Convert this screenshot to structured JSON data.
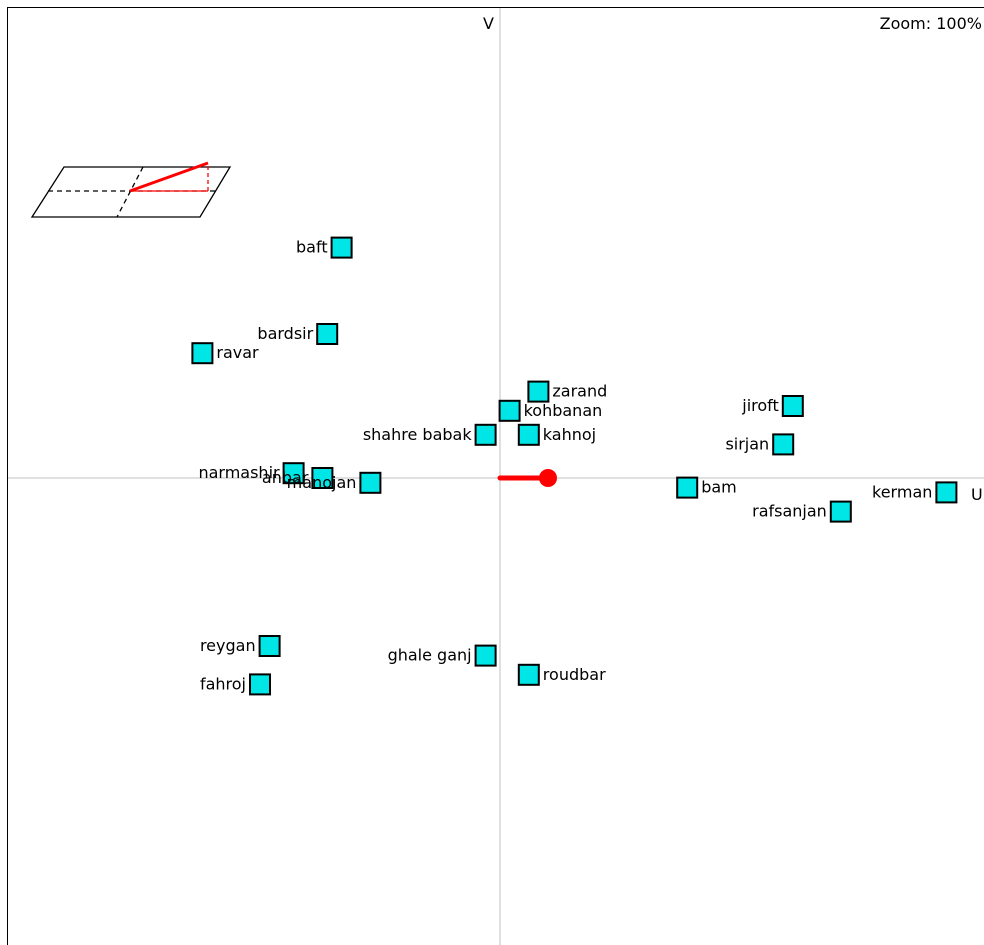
{
  "viewport": {
    "vertical_axis_label": "V",
    "horizontal_axis_label": "U",
    "zoom_label": "Zoom:",
    "zoom_value": "100%"
  },
  "colors": {
    "point_fill": "#00e6e6",
    "point_stroke": "#000000",
    "axis": "#c0c0c0",
    "vector": "#ff0000",
    "frame": "#000000"
  },
  "points": [
    {
      "name": "baft",
      "u": -0.33,
      "v": 0.48,
      "label_side": "left"
    },
    {
      "name": "bardsir",
      "u": -0.36,
      "v": 0.3,
      "label_side": "left"
    },
    {
      "name": "ravar",
      "u": -0.62,
      "v": 0.26,
      "label_side": "right"
    },
    {
      "name": "zarand",
      "u": 0.08,
      "v": 0.18,
      "label_side": "right"
    },
    {
      "name": "kohbanan",
      "u": 0.02,
      "v": 0.14,
      "label_side": "right"
    },
    {
      "name": "shahre babak",
      "u": -0.03,
      "v": 0.09,
      "label_side": "left"
    },
    {
      "name": "kahnoj",
      "u": 0.06,
      "v": 0.09,
      "label_side": "right"
    },
    {
      "name": "jiroft",
      "u": 0.61,
      "v": 0.15,
      "label_side": "left"
    },
    {
      "name": "sirjan",
      "u": 0.59,
      "v": 0.07,
      "label_side": "left"
    },
    {
      "name": "narmashir",
      "u": -0.43,
      "v": 0.01,
      "label_side": "left"
    },
    {
      "name": "anbar",
      "u": -0.37,
      "v": 0.0,
      "label_side": "left"
    },
    {
      "name": "manojan",
      "u": -0.27,
      "v": -0.01,
      "label_side": "left"
    },
    {
      "name": "bam",
      "u": 0.39,
      "v": -0.02,
      "label_side": "right"
    },
    {
      "name": "kerman",
      "u": 0.93,
      "v": -0.03,
      "label_side": "left"
    },
    {
      "name": "rafsanjan",
      "u": 0.71,
      "v": -0.07,
      "label_side": "left"
    },
    {
      "name": "reygan",
      "u": -0.48,
      "v": -0.35,
      "label_side": "left"
    },
    {
      "name": "fahroj",
      "u": -0.5,
      "v": -0.43,
      "label_side": "left"
    },
    {
      "name": "ghale ganj",
      "u": -0.03,
      "v": -0.37,
      "label_side": "left"
    },
    {
      "name": "roudbar",
      "u": 0.06,
      "v": -0.41,
      "label_side": "right"
    }
  ],
  "vector": {
    "u": 0.1,
    "v": 0.0
  }
}
